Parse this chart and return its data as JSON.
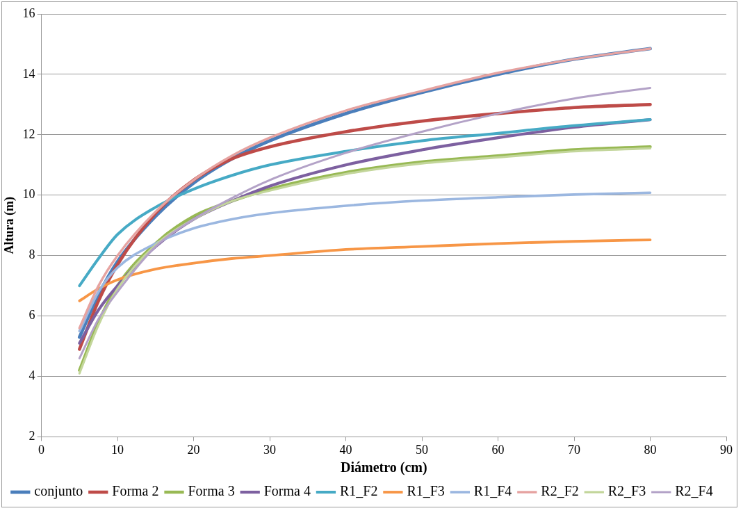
{
  "chart_data": {
    "type": "line",
    "xlabel": "Diámetro (cm)",
    "ylabel": "Altura (m)",
    "x": [
      5,
      7.5,
      10,
      15,
      20,
      25,
      30,
      40,
      50,
      60,
      70,
      80
    ],
    "xlim": [
      0,
      90
    ],
    "xticks": [
      0,
      10,
      20,
      30,
      40,
      50,
      60,
      70,
      80,
      90
    ],
    "ylim": [
      2,
      16
    ],
    "yticks": [
      2,
      4,
      6,
      8,
      10,
      12,
      14,
      16
    ],
    "grid": "y",
    "legend": "bottom",
    "marker": "none",
    "line_style": "solid",
    "series": [
      {
        "name": "conjunto",
        "color": "#4a7ebb",
        "values": [
          5.3,
          6.7,
          7.8,
          9.3,
          10.4,
          11.2,
          11.8,
          12.7,
          13.4,
          14.0,
          14.5,
          14.85
        ]
      },
      {
        "name": "Forma 2",
        "color": "#be4b48",
        "values": [
          4.9,
          6.5,
          7.7,
          9.4,
          10.5,
          11.2,
          11.6,
          12.1,
          12.45,
          12.7,
          12.9,
          13.0
        ]
      },
      {
        "name": "Forma 3",
        "color": "#98b954",
        "values": [
          4.2,
          5.8,
          7.0,
          8.4,
          9.3,
          9.8,
          10.2,
          10.75,
          11.1,
          11.3,
          11.5,
          11.6
        ]
      },
      {
        "name": "Forma 4",
        "color": "#7d60a0",
        "values": [
          5.1,
          6.2,
          7.0,
          8.3,
          9.2,
          9.8,
          10.3,
          11.0,
          11.5,
          11.9,
          12.25,
          12.5
        ]
      },
      {
        "name": "R1_F2",
        "color": "#46aac5",
        "values": [
          7.0,
          7.9,
          8.7,
          9.6,
          10.2,
          10.65,
          11.0,
          11.45,
          11.8,
          12.05,
          12.3,
          12.5
        ]
      },
      {
        "name": "R1_F3",
        "color": "#f79646",
        "values": [
          6.5,
          6.9,
          7.2,
          7.55,
          7.75,
          7.9,
          8.0,
          8.2,
          8.3,
          8.4,
          8.47,
          8.52
        ]
      },
      {
        "name": "R1_F4",
        "color": "#9bb7e0",
        "values": [
          5.5,
          6.8,
          7.6,
          8.4,
          8.9,
          9.2,
          9.4,
          9.65,
          9.82,
          9.93,
          10.02,
          10.08
        ]
      },
      {
        "name": "R2_F2",
        "color": "#e6a3a1",
        "values": [
          5.6,
          7.0,
          8.0,
          9.45,
          10.5,
          11.3,
          11.9,
          12.8,
          13.45,
          14.05,
          14.5,
          14.85
        ]
      },
      {
        "name": "R2_F3",
        "color": "#c3d69b",
        "values": [
          4.1,
          5.7,
          6.9,
          8.35,
          9.2,
          9.8,
          10.15,
          10.7,
          11.05,
          11.25,
          11.45,
          11.55
        ]
      },
      {
        "name": "R2_F4",
        "color": "#b3a2c7",
        "values": [
          4.6,
          5.9,
          6.8,
          8.3,
          9.2,
          9.9,
          10.5,
          11.4,
          12.1,
          12.7,
          13.2,
          13.55
        ]
      }
    ]
  }
}
